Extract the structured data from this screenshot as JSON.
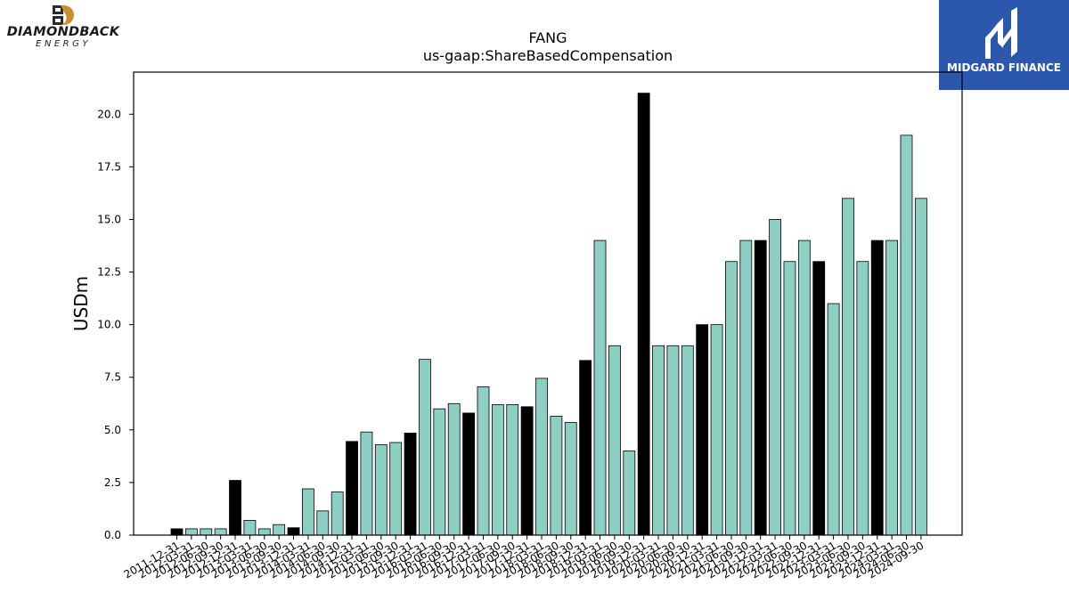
{
  "header": {
    "company_logo_text": "DIAMONDBACK",
    "company_logo_subtext": "ENERGY",
    "brand_text": "MIDGARD FINANCE"
  },
  "colors": {
    "bar_default": "#8ecfc3",
    "bar_highlight": "#000000",
    "brand_bg": "#2b57ad"
  },
  "chart_data": {
    "type": "bar",
    "title": "FANG",
    "subtitle": "us-gaap:ShareBasedCompensation",
    "ylabel": "USDm",
    "xlabel": "",
    "ylim": [
      0,
      22
    ],
    "yticks": [
      "0.0",
      "2.5",
      "5.0",
      "7.5",
      "10.0",
      "12.5",
      "15.0",
      "17.5",
      "20.0"
    ],
    "grid": false,
    "categories": [
      "2011-12-31",
      "2012-03-31",
      "2012-06-30",
      "2012-09-30",
      "2012-12-31",
      "2013-03-31",
      "2013-06-30",
      "2013-09-30",
      "2013-12-31",
      "2014-03-31",
      "2014-06-30",
      "2014-09-30",
      "2014-12-31",
      "2015-03-31",
      "2015-06-30",
      "2015-09-30",
      "2015-12-31",
      "2016-03-31",
      "2016-06-30",
      "2016-09-30",
      "2016-12-31",
      "2017-03-31",
      "2017-06-30",
      "2017-09-30",
      "2017-12-31",
      "2018-03-31",
      "2018-06-30",
      "2018-09-30",
      "2018-12-31",
      "2019-03-31",
      "2019-06-30",
      "2019-09-30",
      "2019-12-31",
      "2020-03-31",
      "2020-06-30",
      "2020-09-30",
      "2020-12-31",
      "2021-03-31",
      "2021-06-30",
      "2021-09-30",
      "2021-12-31",
      "2022-03-31",
      "2022-06-30",
      "2022-09-30",
      "2022-12-31",
      "2023-03-31",
      "2023-06-30",
      "2023-09-30",
      "2023-12-31",
      "2024-03-31",
      "2024-06-30",
      "2024-09-30"
    ],
    "values": [
      0.3,
      0.3,
      0.3,
      0.3,
      2.6,
      0.7,
      0.3,
      0.5,
      0.35,
      2.2,
      1.15,
      2.05,
      4.45,
      4.9,
      4.3,
      4.4,
      4.85,
      8.35,
      6.0,
      6.25,
      5.8,
      7.05,
      6.2,
      6.2,
      6.1,
      7.45,
      5.65,
      5.35,
      8.3,
      14.0,
      9.0,
      4.0,
      21.0,
      9.0,
      9.0,
      9.0,
      10.0,
      10.0,
      13.0,
      14.0,
      14.0,
      15.0,
      13.0,
      14.0,
      13.0,
      11.0,
      16.0,
      13.0,
      14.0,
      14.0,
      19.0,
      16.0
    ],
    "highlighted_categories": [
      "2011-12-31",
      "2012-12-31",
      "2013-12-31",
      "2014-12-31",
      "2015-12-31",
      "2016-12-31",
      "2017-12-31",
      "2018-12-31",
      "2019-12-31",
      "2020-12-31",
      "2021-12-31",
      "2022-12-31",
      "2023-12-31"
    ]
  }
}
